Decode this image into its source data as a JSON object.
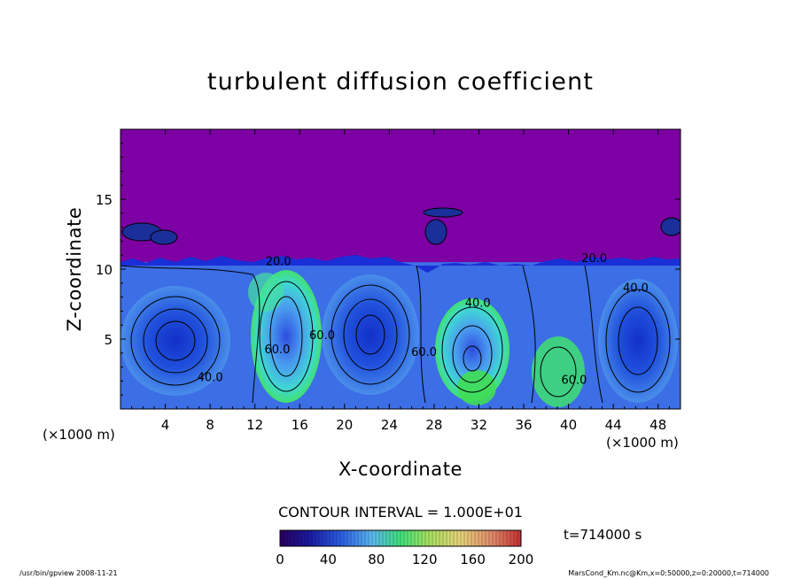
{
  "chart_data": {
    "type": "heatmap",
    "title": "turbulent diffusion coefficient",
    "xlabel": "X-coordinate",
    "ylabel": "Z-coordinate",
    "x_unit": "(×1000 m)",
    "y_unit": "(×1000 m)",
    "xlim": [
      0,
      50
    ],
    "ylim": [
      0,
      20
    ],
    "x_ticks": [
      4,
      8,
      12,
      16,
      20,
      24,
      28,
      32,
      36,
      40,
      44,
      48
    ],
    "y_ticks": [
      5,
      10,
      15
    ],
    "grid": false,
    "colorbar": {
      "range": [
        0,
        200
      ],
      "ticks": [
        0,
        40,
        80,
        120,
        160,
        200
      ]
    },
    "contour_interval_text": "CONTOUR INTERVAL = 1.000E+01",
    "time_label": "t=714000 s",
    "contour_labels": [
      {
        "text": "20.0",
        "x": 14.1,
        "z": 10.3
      },
      {
        "text": "20.0",
        "x": 42.3,
        "z": 10.5
      },
      {
        "text": "40.0",
        "x": 46.0,
        "z": 8.4
      },
      {
        "text": "40.0",
        "x": 31.9,
        "z": 7.3
      },
      {
        "text": "40.0",
        "x": 8.0,
        "z": 2.0
      },
      {
        "text": "60.0",
        "x": 14.0,
        "z": 4.0
      },
      {
        "text": "60.0",
        "x": 18.0,
        "z": 5.0
      },
      {
        "text": "60.0",
        "x": 27.1,
        "z": 3.8
      },
      {
        "text": "60.0",
        "x": 40.5,
        "z": 1.8
      }
    ],
    "top_region_value": 0,
    "boundary_layer_top_approx": 10.5
  },
  "footer": {
    "left": "/usr/bin/gpview   2008-11-21",
    "right": "MarsCond_Km.nc@Km,x=0:50000,z=0:20000,t=714000"
  },
  "colors": {
    "top_fill": "#7d00a4",
    "deep_blue": "#1a2fd8",
    "mid_blue": "#3c6ee6",
    "light_blue": "#62b6f2",
    "cyan": "#3fd7d0",
    "green": "#2ee26a",
    "contour": "#000000"
  }
}
